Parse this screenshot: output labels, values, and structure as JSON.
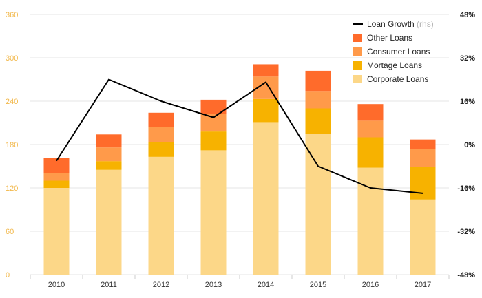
{
  "chart_data": {
    "type": "bar",
    "stacked": true,
    "categories": [
      "2010",
      "2011",
      "2012",
      "2013",
      "2014",
      "2015",
      "2016",
      "2017"
    ],
    "series": [
      {
        "name": "Corporate Loans",
        "color": "#fcd788",
        "values": [
          120,
          145,
          163,
          172,
          211,
          195,
          148,
          104
        ]
      },
      {
        "name": "Mortage Loans",
        "color": "#f7b200",
        "values": [
          10,
          12,
          20,
          26,
          32,
          35,
          42,
          45
        ]
      },
      {
        "name": "Consumer Loans",
        "color": "#ff9a4a",
        "values": [
          10,
          19,
          21,
          24,
          31,
          24,
          23,
          25
        ]
      },
      {
        "name": "Other Loans",
        "color": "#ff6b2b",
        "values": [
          21,
          18,
          20,
          20,
          17,
          28,
          23,
          13
        ]
      }
    ],
    "line_series": {
      "name": "Loan Growth",
      "name_suffix": "(rhs)",
      "color": "#000000",
      "values": [
        -6,
        24,
        16,
        10,
        23,
        -8,
        -16,
        -18
      ]
    },
    "y_left": {
      "ylim": [
        0,
        360
      ],
      "ticks": [
        "0",
        "60",
        "120",
        "180",
        "240",
        "300",
        "360"
      ]
    },
    "y_right": {
      "ylim": [
        -48,
        48
      ],
      "ticks": [
        "-48%",
        "-32%",
        "-16%",
        "0%",
        "16%",
        "32%",
        "48%"
      ]
    },
    "grid": true,
    "legend_position": "top-right"
  }
}
